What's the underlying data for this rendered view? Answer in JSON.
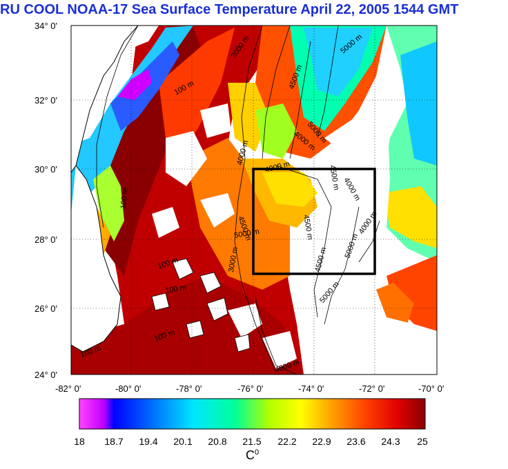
{
  "title": "RU COOL  NOAA-17 Sea Surface Temperature April 22, 2005 1544 GMT",
  "map": {
    "lat_labels": [
      "34° 0'",
      "32° 0'",
      "30° 0'",
      "28° 0'",
      "26° 0'",
      "24° 0'"
    ],
    "lon_labels": [
      "-82° 0'",
      "-80° 0'",
      "-78° 0'",
      "-76° 0'",
      "-74° 0'",
      "-72° 0'",
      "-70° 0'"
    ],
    "lat_range": [
      24,
      34
    ],
    "lon_range": [
      -82,
      -70
    ],
    "study_box": {
      "lon": [
        -76,
        -72
      ],
      "lat": [
        27,
        30
      ]
    },
    "contour_labels": [
      "100 m",
      "3000 m",
      "5000 m",
      "4500 m",
      "4000 m",
      "5000 m",
      "4000 m",
      "100 m",
      "4000 m",
      "4500 m",
      "4000 m",
      "4500 m",
      "4500 m",
      "4000 m",
      "5000 m",
      "5000 m",
      "4500 m",
      "5000 m",
      "100 m",
      "100 m",
      "100 m",
      "100 m",
      "3000 m",
      "4000 m"
    ]
  },
  "colorbar": {
    "labels": [
      "18",
      "18.7",
      "19.4",
      "20.1",
      "20.8",
      "21.5",
      "22.2",
      "22.9",
      "23.6",
      "24.3",
      "25"
    ],
    "unit": "C",
    "unit_sup": "0",
    "colors": [
      "#ff44ff",
      "#c000ff",
      "#0000ff",
      "#0078ff",
      "#00e6ff",
      "#00ff9a",
      "#b4ff00",
      "#ffff00",
      "#ffa000",
      "#ff4000",
      "#e00000",
      "#8a0000"
    ]
  }
}
